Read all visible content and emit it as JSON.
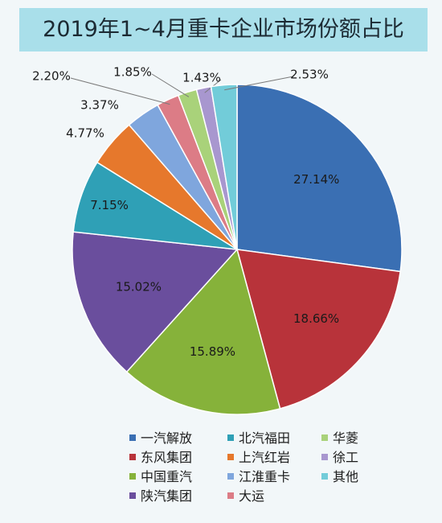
{
  "chart_data": {
    "type": "pie",
    "title": "2019年1~4月重卡企业市场份额占比",
    "slices": [
      {
        "name": "一汽解放",
        "value": 27.14,
        "label": "27.14%",
        "color": "#3a6fb3"
      },
      {
        "name": "东风集团",
        "value": 18.66,
        "label": "18.66%",
        "color": "#b8333a"
      },
      {
        "name": "中国重汽",
        "value": 15.89,
        "label": "15.89%",
        "color": "#86b23a"
      },
      {
        "name": "陕汽集团",
        "value": 15.02,
        "label": "15.02%",
        "color": "#6a4e9d"
      },
      {
        "name": "北汽福田",
        "value": 7.15,
        "label": "7.15%",
        "color": "#2fa0b6"
      },
      {
        "name": "上汽红岩",
        "value": 4.77,
        "label": "4.77%",
        "color": "#e6782c"
      },
      {
        "name": "江淮重卡",
        "value": 3.37,
        "label": "3.37%",
        "color": "#7fa6dd"
      },
      {
        "name": "大运",
        "value": 2.2,
        "label": "2.20%",
        "color": "#dc7c86"
      },
      {
        "name": "华菱",
        "value": 1.85,
        "label": "1.85%",
        "color": "#a9d27a"
      },
      {
        "name": "徐工",
        "value": 1.43,
        "label": "1.43%",
        "color": "#a897cf"
      },
      {
        "name": "其他",
        "value": 2.53,
        "label": "2.53%",
        "color": "#72ccd9"
      }
    ],
    "legend_order": [
      "一汽解放",
      "北汽福田",
      "华菱",
      "东风集团",
      "上汽红岩",
      "徐工",
      "中国重汽",
      "江淮重卡",
      "其他",
      "陕汽集团",
      "大运"
    ]
  }
}
